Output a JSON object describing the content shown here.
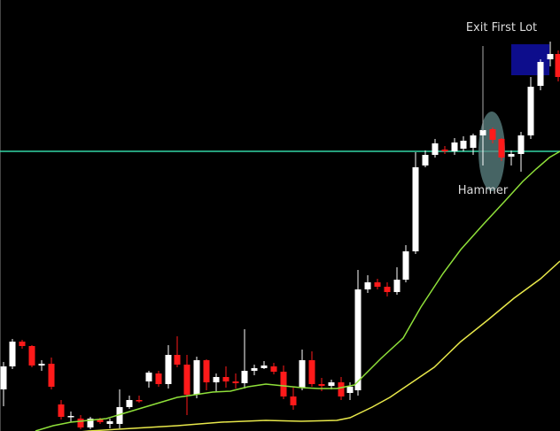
{
  "chart_data": {
    "type": "candlestick",
    "title": "",
    "xlabel": "",
    "ylabel": "",
    "grid": false,
    "legend": "none",
    "ylim": [
      0,
      487
    ],
    "colors": {
      "background": "#000000",
      "bull": "#ffffff",
      "bear": "#ff1a1a",
      "fast_ma": "#8fe03a",
      "slow_ma": "#e8e84a",
      "level_line": "#33d6a5",
      "target_box": "#0d0d8c",
      "hammer_marker": "#5d8585",
      "annotation_text": "#dcdcdc",
      "annotation_line": "#aaaaaa"
    },
    "level_line": {
      "y": 316
    },
    "candles": [
      {
        "x": 4,
        "o": 47,
        "h": 78,
        "l": 28,
        "c": 73
      },
      {
        "x": 14,
        "o": 73,
        "h": 104,
        "l": 70,
        "c": 101
      },
      {
        "x": 25,
        "o": 101,
        "h": 103,
        "l": 93,
        "c": 96
      },
      {
        "x": 36,
        "o": 96,
        "h": 97,
        "l": 72,
        "c": 74
      },
      {
        "x": 47,
        "o": 74,
        "h": 80,
        "l": 68,
        "c": 76
      },
      {
        "x": 58,
        "o": 76,
        "h": 83,
        "l": 47,
        "c": 50
      },
      {
        "x": 69,
        "o": 30,
        "h": 35,
        "l": 13,
        "c": 16
      },
      {
        "x": 80,
        "o": 16,
        "h": 22,
        "l": 10,
        "c": 17
      },
      {
        "x": 91,
        "o": 14,
        "h": 18,
        "l": 2,
        "c": 4
      },
      {
        "x": 102,
        "o": 4,
        "h": 16,
        "l": 2,
        "c": 14
      },
      {
        "x": 113,
        "o": 13,
        "h": 15,
        "l": 8,
        "c": 10
      },
      {
        "x": 124,
        "o": 8,
        "h": 14,
        "l": 3,
        "c": 11
      },
      {
        "x": 135,
        "o": 8,
        "h": 47,
        "l": 3,
        "c": 27
      },
      {
        "x": 146,
        "o": 27,
        "h": 40,
        "l": 25,
        "c": 35
      },
      {
        "x": 157,
        "o": 35,
        "h": 40,
        "l": 32,
        "c": 34
      },
      {
        "x": 168,
        "o": 56,
        "h": 68,
        "l": 49,
        "c": 66
      },
      {
        "x": 179,
        "o": 65,
        "h": 68,
        "l": 50,
        "c": 53
      },
      {
        "x": 190,
        "o": 53,
        "h": 97,
        "l": 48,
        "c": 86
      },
      {
        "x": 200,
        "o": 86,
        "h": 107,
        "l": 72,
        "c": 75
      },
      {
        "x": 211,
        "o": 75,
        "h": 86,
        "l": 18,
        "c": 41
      },
      {
        "x": 222,
        "o": 41,
        "h": 84,
        "l": 37,
        "c": 80
      },
      {
        "x": 233,
        "o": 80,
        "h": 81,
        "l": 46,
        "c": 55
      },
      {
        "x": 244,
        "o": 55,
        "h": 65,
        "l": 45,
        "c": 61
      },
      {
        "x": 255,
        "o": 61,
        "h": 73,
        "l": 49,
        "c": 56
      },
      {
        "x": 266,
        "o": 56,
        "h": 65,
        "l": 48,
        "c": 54
      },
      {
        "x": 276,
        "o": 54,
        "h": 115,
        "l": 48,
        "c": 68
      },
      {
        "x": 287,
        "o": 68,
        "h": 75,
        "l": 63,
        "c": 71
      },
      {
        "x": 298,
        "o": 71,
        "h": 79,
        "l": 70,
        "c": 74
      },
      {
        "x": 309,
        "o": 73,
        "h": 77,
        "l": 64,
        "c": 67
      },
      {
        "x": 320,
        "o": 67,
        "h": 74,
        "l": 36,
        "c": 39
      },
      {
        "x": 331,
        "o": 39,
        "h": 49,
        "l": 24,
        "c": 29
      },
      {
        "x": 341,
        "o": 49,
        "h": 92,
        "l": 46,
        "c": 80
      },
      {
        "x": 352,
        "o": 80,
        "h": 90,
        "l": 50,
        "c": 53
      },
      {
        "x": 363,
        "o": 53,
        "h": 60,
        "l": 45,
        "c": 51
      },
      {
        "x": 374,
        "o": 51,
        "h": 58,
        "l": 47,
        "c": 55
      },
      {
        "x": 385,
        "o": 55,
        "h": 61,
        "l": 35,
        "c": 39
      },
      {
        "x": 395,
        "o": 43,
        "h": 55,
        "l": 35,
        "c": 50
      },
      {
        "x": 404,
        "o": 46,
        "h": 182,
        "l": 40,
        "c": 160
      },
      {
        "x": 415,
        "o": 160,
        "h": 176,
        "l": 156,
        "c": 168
      },
      {
        "x": 426,
        "o": 168,
        "h": 172,
        "l": 160,
        "c": 163
      },
      {
        "x": 437,
        "o": 163,
        "h": 168,
        "l": 152,
        "c": 157
      },
      {
        "x": 448,
        "o": 157,
        "h": 185,
        "l": 154,
        "c": 171
      },
      {
        "x": 458,
        "o": 171,
        "h": 210,
        "l": 168,
        "c": 203
      },
      {
        "x": 469,
        "o": 203,
        "h": 315,
        "l": 200,
        "c": 298
      },
      {
        "x": 480,
        "o": 300,
        "h": 317,
        "l": 298,
        "c": 312
      },
      {
        "x": 491,
        "o": 312,
        "h": 330,
        "l": 309,
        "c": 325
      },
      {
        "x": 502,
        "o": 318,
        "h": 322,
        "l": 313,
        "c": 316
      },
      {
        "x": 513,
        "o": 316,
        "h": 331,
        "l": 312,
        "c": 326
      },
      {
        "x": 523,
        "o": 319,
        "h": 333,
        "l": 316,
        "c": 328
      },
      {
        "x": 534,
        "o": 320,
        "h": 336,
        "l": 312,
        "c": 334
      },
      {
        "x": 545,
        "o": 334,
        "h": 430,
        "l": 300,
        "c": 340
      },
      {
        "x": 556,
        "o": 341,
        "h": 343,
        "l": 325,
        "c": 329
      },
      {
        "x": 566,
        "o": 330,
        "h": 331,
        "l": 305,
        "c": 309
      },
      {
        "x": 577,
        "o": 310,
        "h": 317,
        "l": 300,
        "c": 313
      },
      {
        "x": 588,
        "o": 313,
        "h": 338,
        "l": 293,
        "c": 334
      },
      {
        "x": 599,
        "o": 334,
        "h": 400,
        "l": 330,
        "c": 389
      },
      {
        "x": 610,
        "o": 390,
        "h": 420,
        "l": 385,
        "c": 417
      },
      {
        "x": 621,
        "o": 420,
        "h": 440,
        "l": 412,
        "c": 426
      },
      {
        "x": 630,
        "o": 426,
        "h": 430,
        "l": 395,
        "c": 400
      }
    ],
    "series": [
      {
        "values": [
          [
            40,
            0
          ],
          [
            60,
            6
          ],
          [
            80,
            10
          ],
          [
            100,
            12
          ],
          [
            120,
            14
          ],
          [
            140,
            20
          ],
          [
            160,
            26
          ],
          [
            180,
            32
          ],
          [
            200,
            38
          ],
          [
            220,
            41
          ],
          [
            240,
            44
          ],
          [
            260,
            45
          ],
          [
            280,
            50
          ],
          [
            300,
            53
          ],
          [
            320,
            51
          ],
          [
            340,
            49
          ],
          [
            360,
            48
          ],
          [
            380,
            48
          ],
          [
            400,
            52
          ],
          [
            410,
            62
          ],
          [
            430,
            82
          ],
          [
            455,
            105
          ],
          [
            475,
            140
          ],
          [
            500,
            178
          ],
          [
            520,
            205
          ],
          [
            545,
            233
          ],
          [
            570,
            260
          ],
          [
            590,
            282
          ],
          [
            605,
            296
          ],
          [
            620,
            309
          ],
          [
            632,
            316
          ]
        ]
      },
      {
        "values": [
          [
            50,
            -5
          ],
          [
            100,
            0
          ],
          [
            150,
            3
          ],
          [
            200,
            6
          ],
          [
            250,
            10
          ],
          [
            300,
            12
          ],
          [
            340,
            11
          ],
          [
            380,
            12
          ],
          [
            395,
            15
          ],
          [
            420,
            27
          ],
          [
            440,
            38
          ],
          [
            465,
            55
          ],
          [
            490,
            72
          ],
          [
            520,
            101
          ],
          [
            550,
            125
          ],
          [
            580,
            150
          ],
          [
            610,
            172
          ],
          [
            632,
            192
          ]
        ]
      }
    ],
    "annotations": [
      {
        "text": "Exit First Lot",
        "x": 566,
        "y": 456
      },
      {
        "text": "Hammer",
        "x": 545,
        "y": 273
      }
    ],
    "target_box": {
      "x0": 577,
      "x1": 620,
      "y0": 402,
      "y1": 437
    },
    "hammer_marker": {
      "cx": 555,
      "cy": 316,
      "rx": 15,
      "ry": 45
    }
  }
}
